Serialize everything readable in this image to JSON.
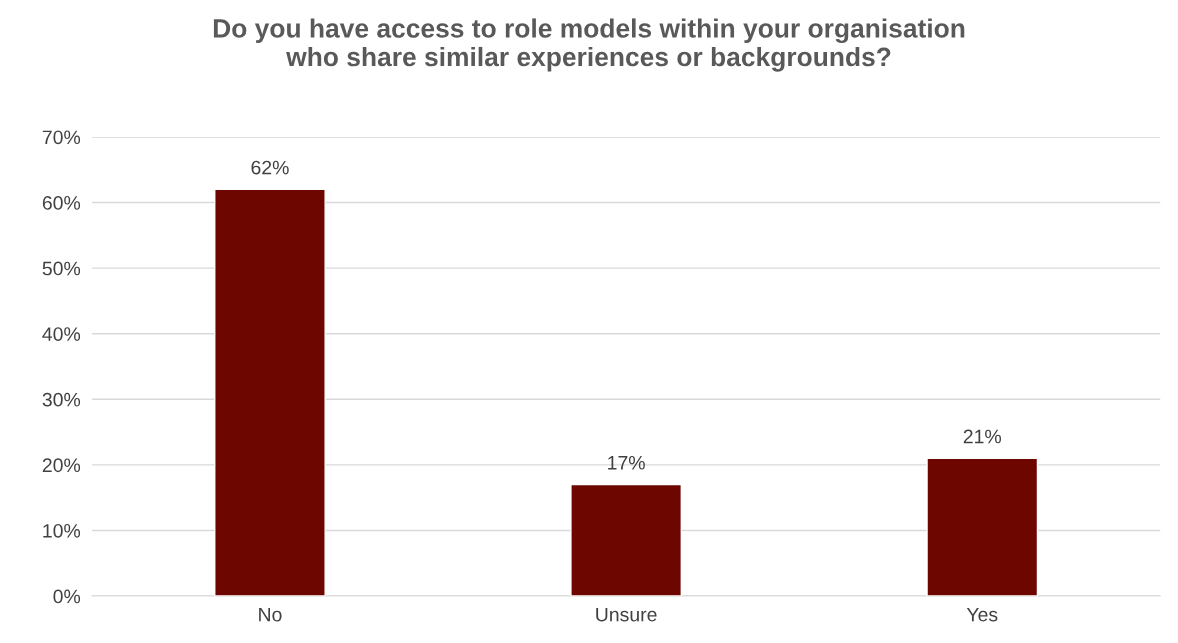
{
  "chart_data": {
    "type": "bar",
    "title": "Do you have access to role models within your organisation\nwho share similar experiences or backgrounds?",
    "categories": [
      "No",
      "Unsure",
      "Yes"
    ],
    "values": [
      62,
      17,
      21
    ],
    "value_labels": [
      "62%",
      "17%",
      "21%"
    ],
    "color": "#6e0600",
    "ylim": [
      0,
      70
    ],
    "yticks": [
      {
        "value": 0,
        "label": "0%"
      },
      {
        "value": 10,
        "label": "10%"
      },
      {
        "value": 20,
        "label": "20%"
      },
      {
        "value": 30,
        "label": "30%"
      },
      {
        "value": 40,
        "label": "40%"
      },
      {
        "value": 50,
        "label": "50%"
      },
      {
        "value": 60,
        "label": "60%"
      },
      {
        "value": 70,
        "label": "70%"
      }
    ],
    "grid": "y",
    "legend": false
  }
}
